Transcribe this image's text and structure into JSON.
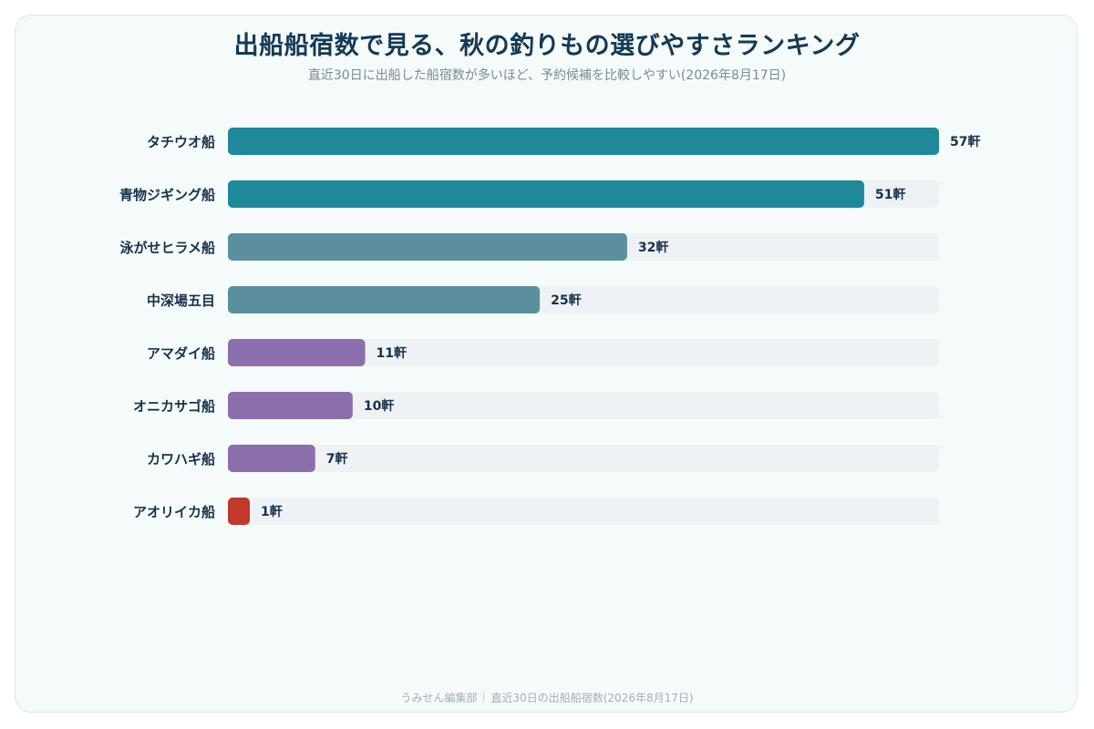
{
  "title": "出船船宿数で見る、秋の釣りもの選びやすさランキング",
  "subtitle": "直近30日に出船した船宿数が多いほど、予約候補を比較しやすい(2026年8月17日)",
  "footer": {
    "source": "うみせん編集部",
    "note": "直近30日の出船船宿数(2026年8月17日)"
  },
  "colors": {
    "high": "#1e8a99",
    "mid": "#5b8f9e",
    "low": "#8b6fad",
    "min": "#c0392b",
    "track": "#eef2f5",
    "label": "#17324a"
  },
  "chart_data": {
    "type": "bar",
    "orientation": "horizontal",
    "unit": "軒",
    "xlim": [
      0,
      57
    ],
    "grid": false,
    "categories": [
      "タチウオ船",
      "青物ジギング船",
      "泳がせヒラメ船",
      "中深場五目",
      "アマダイ船",
      "オニカサゴ船",
      "カワハギ船",
      "アオリイカ船"
    ],
    "values": [
      57,
      51,
      32,
      25,
      11,
      10,
      7,
      1
    ],
    "value_labels": [
      "57軒",
      "51軒",
      "32軒",
      "25軒",
      "11軒",
      "10軒",
      "7軒",
      "1軒"
    ],
    "bar_colors": [
      "high",
      "high",
      "mid",
      "mid",
      "low",
      "low",
      "low",
      "min"
    ]
  }
}
